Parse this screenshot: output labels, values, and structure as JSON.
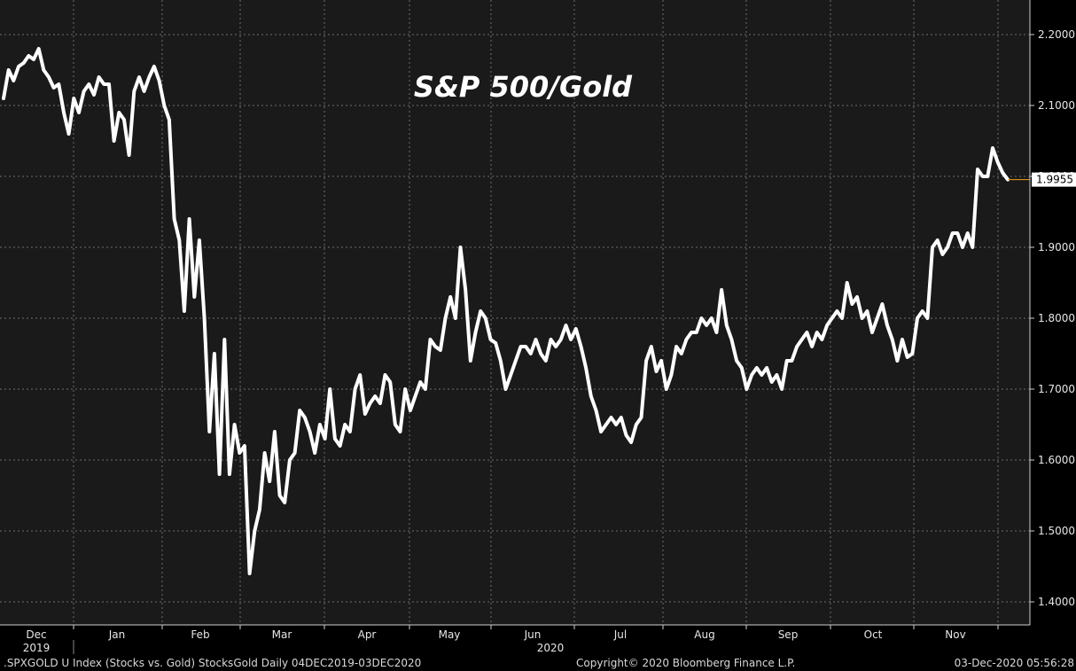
{
  "chart_data": {
    "type": "line",
    "title": "S&P 500/Gold",
    "xlabel": "",
    "ylabel": "",
    "ylim": [
      1.37,
      2.25
    ],
    "y_ticks": [
      1.4,
      1.5,
      1.6,
      1.7,
      1.8,
      1.9,
      2.0,
      2.1,
      2.2
    ],
    "y_tick_labels": [
      "1.4000",
      "1.5000",
      "1.6000",
      "1.7000",
      "1.8000",
      "1.9000",
      "2.0000",
      "2.1000",
      "2.2000"
    ],
    "x_month_labels": [
      "Dec",
      "Jan",
      "Feb",
      "Mar",
      "Apr",
      "May",
      "Jun",
      "Jul",
      "Aug",
      "Sep",
      "Oct",
      "Nov"
    ],
    "x_year_labels": [
      "2019",
      "2020"
    ],
    "last_value_label": "1.9955",
    "grid": true,
    "series": [
      {
        "color": "#ffffff",
        "values": [
          2.11,
          2.15,
          2.135,
          2.155,
          2.16,
          2.17,
          2.165,
          2.18,
          2.15,
          2.14,
          2.125,
          2.13,
          2.09,
          2.06,
          2.11,
          2.09,
          2.12,
          2.13,
          2.115,
          2.14,
          2.13,
          2.13,
          2.05,
          2.09,
          2.08,
          2.03,
          2.12,
          2.14,
          2.12,
          2.14,
          2.155,
          2.135,
          2.1,
          2.08,
          1.94,
          1.91,
          1.81,
          1.94,
          1.83,
          1.91,
          1.8,
          1.64,
          1.75,
          1.58,
          1.77,
          1.58,
          1.65,
          1.61,
          1.62,
          1.44,
          1.5,
          1.53,
          1.61,
          1.57,
          1.64,
          1.55,
          1.54,
          1.6,
          1.61,
          1.67,
          1.66,
          1.64,
          1.61,
          1.65,
          1.63,
          1.7,
          1.63,
          1.62,
          1.65,
          1.64,
          1.7,
          1.72,
          1.665,
          1.68,
          1.69,
          1.68,
          1.72,
          1.71,
          1.65,
          1.64,
          1.7,
          1.67,
          1.69,
          1.71,
          1.7,
          1.77,
          1.76,
          1.755,
          1.8,
          1.83,
          1.8,
          1.9,
          1.84,
          1.74,
          1.78,
          1.81,
          1.8,
          1.77,
          1.765,
          1.74,
          1.7,
          1.72,
          1.74,
          1.76,
          1.76,
          1.75,
          1.77,
          1.75,
          1.74,
          1.77,
          1.76,
          1.77,
          1.79,
          1.77,
          1.785,
          1.76,
          1.73,
          1.69,
          1.67,
          1.64,
          1.65,
          1.66,
          1.65,
          1.66,
          1.635,
          1.625,
          1.65,
          1.66,
          1.74,
          1.76,
          1.725,
          1.74,
          1.7,
          1.72,
          1.76,
          1.75,
          1.77,
          1.78,
          1.78,
          1.8,
          1.79,
          1.8,
          1.78,
          1.84,
          1.79,
          1.77,
          1.74,
          1.73,
          1.7,
          1.72,
          1.73,
          1.72,
          1.73,
          1.71,
          1.72,
          1.7,
          1.74,
          1.74,
          1.76,
          1.77,
          1.78,
          1.76,
          1.78,
          1.77,
          1.79,
          1.8,
          1.81,
          1.8,
          1.85,
          1.82,
          1.83,
          1.8,
          1.81,
          1.78,
          1.8,
          1.82,
          1.79,
          1.77,
          1.74,
          1.77,
          1.745,
          1.75,
          1.8,
          1.81,
          1.8,
          1.9,
          1.91,
          1.89,
          1.9,
          1.92,
          1.92,
          1.9,
          1.92,
          1.9,
          2.01,
          2.0,
          2.0,
          2.04,
          2.02,
          2.005,
          1.9955
        ]
      }
    ]
  },
  "footer": {
    "left": ".SPXGOLD U Index (Stocks vs. Gold) StocksGold  Daily 04DEC2019-03DEC2020",
    "center": "Copyright© 2020 Bloomberg Finance L.P.",
    "right": "03-Dec-2020 05:56:28"
  },
  "colors": {
    "background": "#1a1a1a",
    "line": "#ffffff",
    "grid": "#6e6e6e",
    "last_value_marker": "#f0a020"
  }
}
